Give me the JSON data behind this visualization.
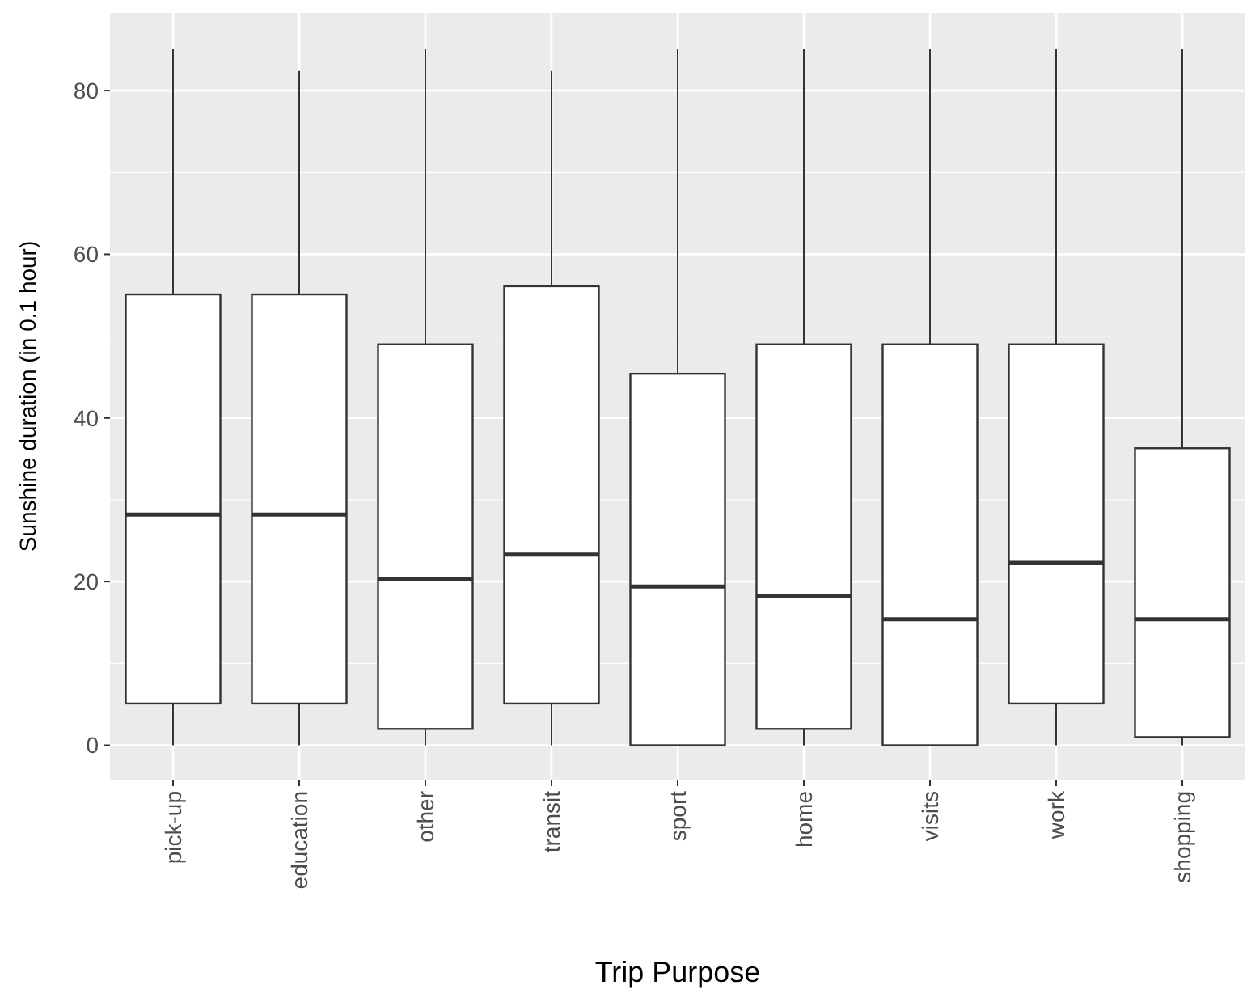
{
  "chart_data": {
    "type": "box",
    "xlabel": "Trip Purpose",
    "ylabel": "Sunshine duration (in 0.1 hour)",
    "categories": [
      "pick-up",
      "education",
      "other",
      "transit",
      "sport",
      "home",
      "visits",
      "work",
      "shopping"
    ],
    "boxes": [
      {
        "low": 0,
        "q1": 5.1,
        "median": 28.2,
        "q3": 55.1,
        "high": 85.1
      },
      {
        "low": 0,
        "q1": 5.1,
        "median": 28.2,
        "q3": 55.1,
        "high": 82.4
      },
      {
        "low": 0,
        "q1": 2,
        "median": 20.3,
        "q3": 49,
        "high": 85.1
      },
      {
        "low": 0,
        "q1": 5.1,
        "median": 23.3,
        "q3": 56.1,
        "high": 82.4
      },
      {
        "low": 0,
        "q1": 0,
        "median": 19.4,
        "q3": 45.4,
        "high": 85.1
      },
      {
        "low": 0,
        "q1": 2,
        "median": 18.2,
        "q3": 49,
        "high": 85.1
      },
      {
        "low": 0,
        "q1": 0,
        "median": 15.4,
        "q3": 49,
        "high": 85.1
      },
      {
        "low": 0,
        "q1": 5.1,
        "median": 22.3,
        "q3": 49,
        "high": 85.1
      },
      {
        "low": 0,
        "q1": 1,
        "median": 15.4,
        "q3": 36.3,
        "high": 85.1
      }
    ],
    "ylim": [
      -4.2,
      89.5
    ],
    "yticks": [
      0,
      20,
      40,
      60,
      80
    ],
    "grid": true,
    "color": "#ffffff"
  }
}
